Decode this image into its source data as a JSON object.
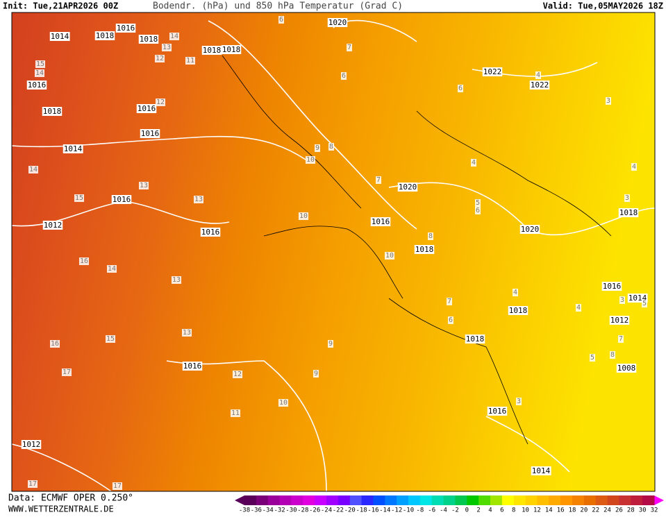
{
  "header": {
    "init": "Init: Tue,21APR2026 00Z",
    "title": "Bodendr. (hPa) und 850 hPa Temperatur (Grad C)",
    "valid": "Valid: Tue,05MAY2026 18Z"
  },
  "footer": {
    "data": "Data: ECMWF OPER 0.250°",
    "site": "WWW.WETTERZENTRALE.DE"
  },
  "colorbar": {
    "labels": [
      -38,
      -36,
      -34,
      -32,
      -30,
      -28,
      -26,
      -24,
      -22,
      -20,
      -18,
      -16,
      -14,
      -12,
      -10,
      -8,
      -6,
      -4,
      -2,
      0,
      2,
      4,
      6,
      8,
      10,
      12,
      14,
      16,
      18,
      20,
      22,
      24,
      26,
      28,
      30,
      32
    ],
    "colors": [
      "#5a005a",
      "#7a007a",
      "#9a009a",
      "#b400b4",
      "#cc00cc",
      "#e000e0",
      "#c800ff",
      "#a000ff",
      "#7800ff",
      "#5050ff",
      "#2828ff",
      "#0050ff",
      "#0078ff",
      "#00a0ff",
      "#00c8ff",
      "#00e6e6",
      "#00dcb4",
      "#00d28c",
      "#00c850",
      "#00c800",
      "#50dc00",
      "#a0e600",
      "#ffff00",
      "#ffe600",
      "#ffd200",
      "#ffbe00",
      "#ffaa00",
      "#ff9600",
      "#f58200",
      "#e86e00",
      "#dc5a14",
      "#d2461e",
      "#c83232",
      "#be1e3c",
      "#b40a46"
    ]
  },
  "isobar_labels": [
    "1014",
    "1018",
    "1016",
    "1018",
    "1018",
    "1018",
    "1016",
    "1018",
    "1016",
    "1016",
    "1014",
    "1016",
    "1012",
    "1016",
    "1020",
    "1022",
    "1022",
    "1020",
    "1016",
    "1018",
    "1020",
    "1018",
    "1016",
    "1014",
    "1012",
    "1018",
    "1018",
    "1008",
    "1016",
    "1014",
    "1016",
    "1012"
  ],
  "temperature_labels": [
    "15",
    "14",
    "14",
    "13",
    "12",
    "11",
    "12",
    "14",
    "13",
    "15",
    "13",
    "16",
    "14",
    "13",
    "15",
    "16",
    "13",
    "17",
    "12",
    "11",
    "10",
    "9",
    "9",
    "10",
    "10",
    "10",
    "9",
    "8",
    "7",
    "6",
    "7",
    "6",
    "6",
    "4",
    "3",
    "4",
    "4",
    "3",
    "5",
    "6",
    "8",
    "7",
    "6",
    "4",
    "4",
    "3",
    "5",
    "7",
    "8",
    "5",
    "3",
    "17",
    "17"
  ]
}
